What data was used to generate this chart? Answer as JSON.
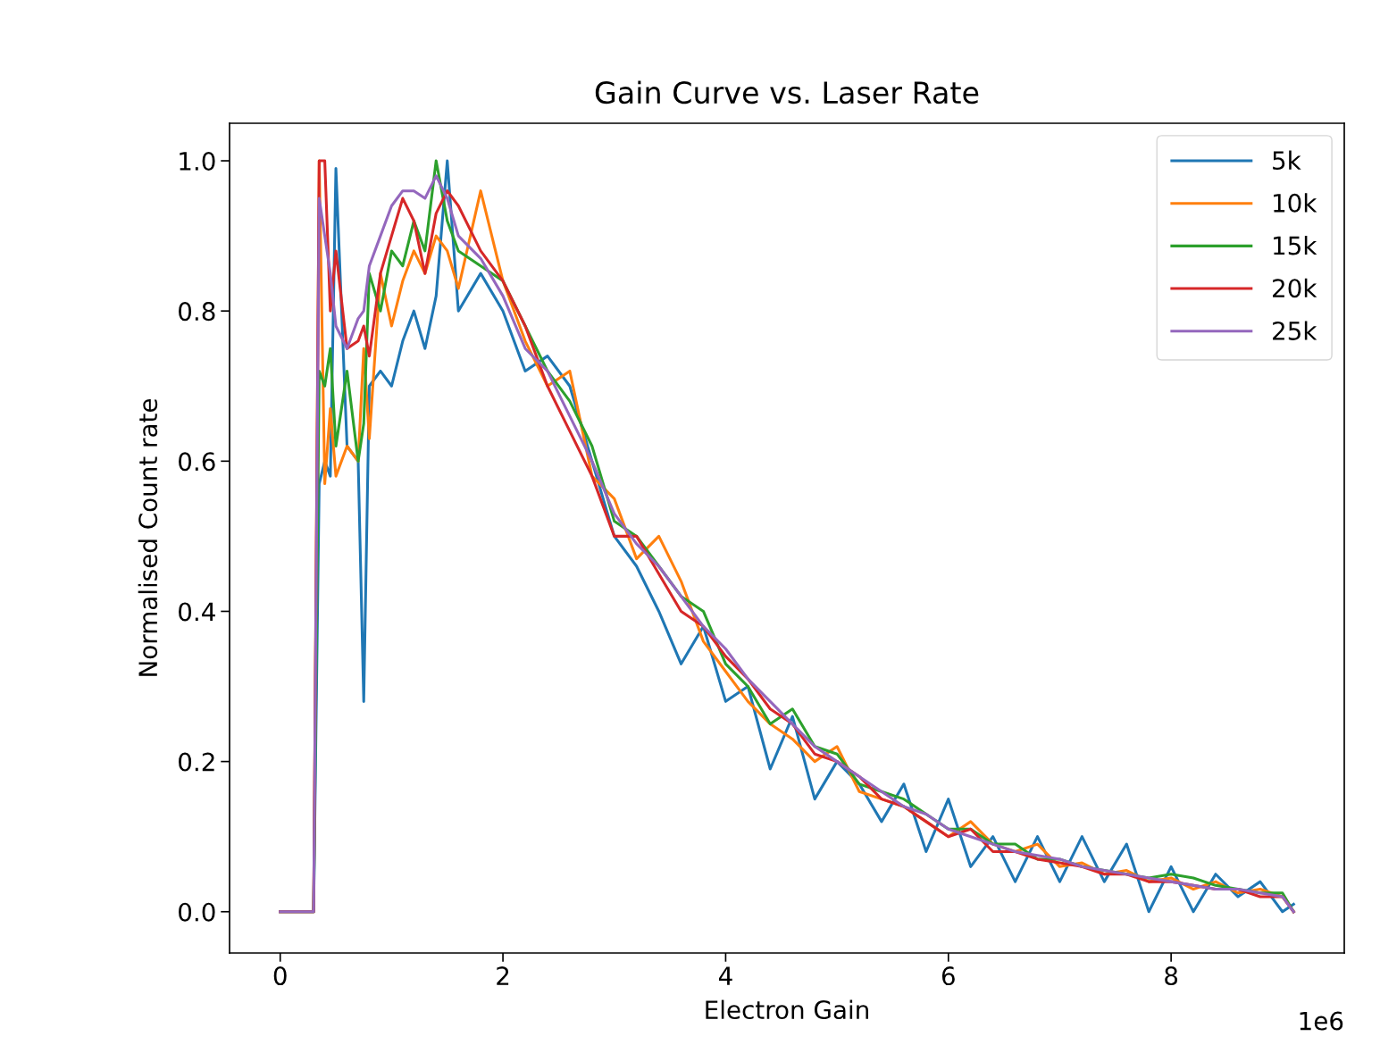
{
  "chart_data": {
    "type": "line",
    "title": "Gain Curve vs. Laser Rate",
    "xlabel": "Electron Gain",
    "ylabel": "Normalised Count rate",
    "annotations": [
      "1e6"
    ],
    "x": [
      0,
      0.3,
      0.35,
      0.4,
      0.45,
      0.5,
      0.6,
      0.7,
      0.75,
      0.8,
      0.9,
      1.0,
      1.1,
      1.2,
      1.3,
      1.4,
      1.5,
      1.6,
      1.8,
      2.0,
      2.2,
      2.4,
      2.6,
      2.8,
      3.0,
      3.2,
      3.4,
      3.6,
      3.8,
      4.0,
      4.2,
      4.4,
      4.6,
      4.8,
      5.0,
      5.2,
      5.4,
      5.6,
      5.8,
      6.0,
      6.2,
      6.4,
      6.6,
      6.8,
      7.0,
      7.2,
      7.4,
      7.6,
      7.8,
      8.0,
      8.2,
      8.4,
      8.6,
      8.8,
      9.0,
      9.1
    ],
    "series": [
      {
        "name": "5k",
        "color": "#1f77b4",
        "values": [
          0,
          0,
          0.57,
          0.6,
          0.58,
          0.99,
          0.62,
          0.6,
          0.28,
          0.7,
          0.72,
          0.7,
          0.76,
          0.8,
          0.75,
          0.82,
          1.0,
          0.8,
          0.85,
          0.8,
          0.72,
          0.74,
          0.7,
          0.6,
          0.5,
          0.46,
          0.4,
          0.33,
          0.38,
          0.28,
          0.3,
          0.19,
          0.26,
          0.15,
          0.2,
          0.17,
          0.12,
          0.17,
          0.08,
          0.15,
          0.06,
          0.1,
          0.04,
          0.1,
          0.04,
          0.1,
          0.04,
          0.09,
          0.0,
          0.06,
          0.0,
          0.05,
          0.02,
          0.04,
          0.0,
          0.01
        ]
      },
      {
        "name": "10k",
        "color": "#ff7f0e",
        "values": [
          0,
          0,
          1.0,
          0.57,
          0.67,
          0.58,
          0.62,
          0.6,
          0.75,
          0.63,
          0.85,
          0.78,
          0.84,
          0.88,
          0.85,
          0.9,
          0.88,
          0.83,
          0.96,
          0.84,
          0.76,
          0.7,
          0.72,
          0.58,
          0.55,
          0.47,
          0.5,
          0.44,
          0.36,
          0.32,
          0.28,
          0.25,
          0.23,
          0.2,
          0.22,
          0.16,
          0.15,
          0.14,
          0.12,
          0.1,
          0.12,
          0.09,
          0.08,
          0.09,
          0.06,
          0.065,
          0.05,
          0.055,
          0.04,
          0.045,
          0.03,
          0.04,
          0.025,
          0.03,
          0.02,
          0.0
        ]
      },
      {
        "name": "15k",
        "color": "#2ca02c",
        "values": [
          0,
          0,
          0.72,
          0.7,
          0.75,
          0.62,
          0.72,
          0.6,
          0.65,
          0.85,
          0.8,
          0.88,
          0.86,
          0.92,
          0.88,
          1.0,
          0.92,
          0.88,
          0.86,
          0.84,
          0.78,
          0.72,
          0.68,
          0.62,
          0.52,
          0.5,
          0.46,
          0.42,
          0.4,
          0.33,
          0.3,
          0.25,
          0.27,
          0.22,
          0.21,
          0.17,
          0.16,
          0.15,
          0.13,
          0.11,
          0.11,
          0.09,
          0.09,
          0.07,
          0.07,
          0.06,
          0.055,
          0.05,
          0.045,
          0.05,
          0.045,
          0.035,
          0.03,
          0.025,
          0.025,
          0.0
        ]
      },
      {
        "name": "20k",
        "color": "#d62728",
        "values": [
          0,
          0,
          1.0,
          1.0,
          0.8,
          0.88,
          0.75,
          0.76,
          0.78,
          0.74,
          0.85,
          0.9,
          0.95,
          0.92,
          0.85,
          0.93,
          0.96,
          0.94,
          0.88,
          0.84,
          0.78,
          0.7,
          0.64,
          0.58,
          0.5,
          0.5,
          0.45,
          0.4,
          0.38,
          0.34,
          0.31,
          0.27,
          0.25,
          0.21,
          0.2,
          0.18,
          0.15,
          0.14,
          0.12,
          0.1,
          0.11,
          0.08,
          0.08,
          0.07,
          0.065,
          0.06,
          0.05,
          0.05,
          0.04,
          0.04,
          0.035,
          0.03,
          0.03,
          0.02,
          0.02,
          0.0
        ]
      },
      {
        "name": "25k",
        "color": "#9467bd",
        "values": [
          0,
          0,
          0.95,
          0.9,
          0.85,
          0.78,
          0.75,
          0.79,
          0.8,
          0.86,
          0.9,
          0.94,
          0.96,
          0.96,
          0.95,
          0.98,
          0.95,
          0.9,
          0.87,
          0.82,
          0.75,
          0.72,
          0.66,
          0.6,
          0.53,
          0.49,
          0.46,
          0.42,
          0.38,
          0.35,
          0.31,
          0.28,
          0.25,
          0.22,
          0.2,
          0.18,
          0.16,
          0.14,
          0.13,
          0.11,
          0.1,
          0.09,
          0.08,
          0.075,
          0.07,
          0.06,
          0.055,
          0.05,
          0.045,
          0.04,
          0.035,
          0.03,
          0.03,
          0.025,
          0.02,
          0.0
        ]
      }
    ],
    "xlim": [
      -0.455,
      9.555
    ],
    "xticks": [
      0,
      2,
      4,
      6,
      8
    ],
    "ylim": [
      -0.055,
      1.05
    ],
    "yticks": [
      {
        "value": 0,
        "label": "0.0"
      },
      {
        "value": 0.2,
        "label": "0.2"
      },
      {
        "value": 0.4,
        "label": "0.4"
      },
      {
        "value": 0.6,
        "label": "0.6"
      },
      {
        "value": 0.8,
        "label": "0.8"
      },
      {
        "value": 1.0,
        "label": "1.0"
      }
    ],
    "legend": "top right",
    "grid": false,
    "line_style": "solid"
  }
}
